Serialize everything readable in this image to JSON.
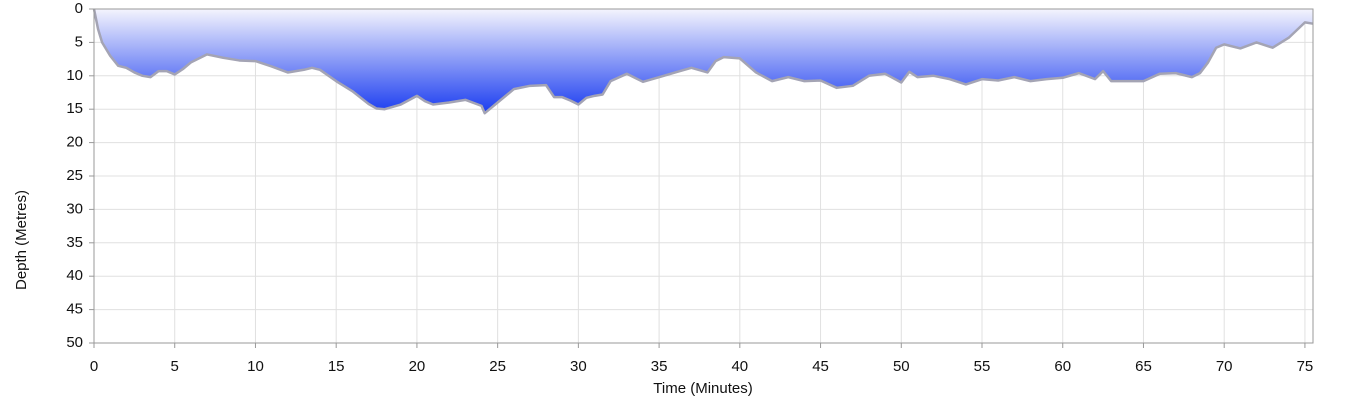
{
  "chart_data": {
    "type": "area",
    "x_label": "Time (Minutes)",
    "y_label": "Depth (Metres)",
    "xlim": [
      0,
      75.5
    ],
    "ylim": [
      0,
      50
    ],
    "y_inverted": true,
    "xticks": [
      0,
      5,
      10,
      15,
      20,
      25,
      30,
      35,
      40,
      45,
      50,
      55,
      60,
      65,
      70,
      75
    ],
    "yticks": [
      0,
      5,
      10,
      15,
      20,
      25,
      30,
      35,
      40,
      45,
      50
    ],
    "grid": true,
    "series": [
      {
        "color": "#1a3cf0",
        "x": [
          0,
          0.25,
          0.5,
          1,
          1.5,
          2,
          2.5,
          3,
          3.5,
          4,
          4.5,
          5,
          5.5,
          6,
          7,
          8,
          9,
          10,
          11,
          12,
          13,
          13.5,
          14,
          15,
          16,
          17,
          17.5,
          18,
          19,
          20,
          20.5,
          21,
          22,
          23,
          24,
          24.2,
          25,
          26,
          27,
          28,
          28.5,
          29,
          29.5,
          30,
          30.5,
          31,
          31.5,
          32,
          33,
          34,
          35,
          36,
          37,
          38,
          38.5,
          39,
          40,
          41,
          42,
          43,
          44,
          45,
          46,
          47,
          48,
          49,
          50,
          50.5,
          51,
          52,
          53,
          54,
          55,
          56,
          57,
          58,
          59,
          60,
          61,
          62,
          62.5,
          63,
          64,
          65,
          66,
          67,
          68,
          68.5,
          69,
          69.5,
          70,
          71,
          72,
          73,
          74,
          75,
          75.5
        ],
        "values": [
          0,
          3,
          5,
          7,
          8.5,
          8.8,
          9.5,
          10,
          10.2,
          9.3,
          9.3,
          9.8,
          9,
          8,
          6.8,
          7.3,
          7.7,
          7.8,
          8.6,
          9.5,
          9.1,
          8.8,
          9.1,
          10.8,
          12.3,
          14.2,
          14.9,
          15,
          14.3,
          13,
          13.8,
          14.3,
          14,
          13.6,
          14.5,
          15.6,
          14,
          12,
          11.5,
          11.4,
          13.2,
          13.2,
          13.7,
          14.3,
          13.3,
          13,
          12.8,
          10.8,
          9.7,
          10.9,
          10.2,
          9.5,
          8.8,
          9.5,
          7.8,
          7.2,
          7.4,
          9.5,
          10.8,
          10.2,
          10.8,
          10.7,
          11.8,
          11.5,
          10,
          9.7,
          11,
          9.4,
          10.2,
          10,
          10.5,
          11.3,
          10.5,
          10.7,
          10.2,
          10.8,
          10.5,
          10.3,
          9.6,
          10.5,
          9.3,
          10.8,
          10.8,
          10.8,
          9.7,
          9.6,
          10.2,
          9.6,
          8,
          5.8,
          5.3,
          5.9,
          5,
          5.8,
          4.3,
          2,
          2.2
        ]
      }
    ]
  }
}
